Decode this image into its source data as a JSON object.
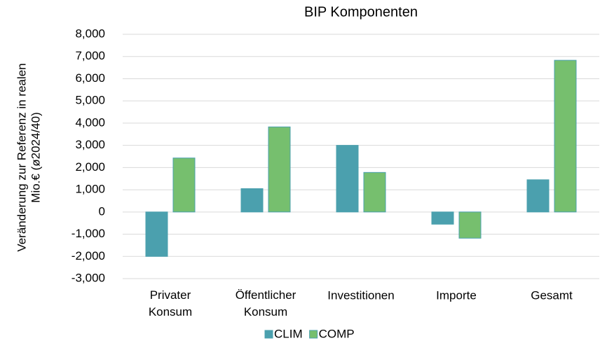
{
  "chart_data": {
    "type": "bar",
    "title": "BIP Komponenten",
    "ylabel": [
      "Veränderung zur Referenz  in realen",
      "Mio.€ (ø2024/40)"
    ],
    "categories": [
      "Privater Konsum",
      "Öffentlicher Konsum",
      "Investitionen",
      "Importe",
      "Gesamt"
    ],
    "series": [
      {
        "name": "CLIM",
        "color": "#4ba0ae",
        "values": [
          -2000,
          1050,
          3000,
          -550,
          1450
        ]
      },
      {
        "name": "COMP",
        "color": "#76bf6e",
        "values": [
          2430,
          3830,
          1780,
          -1180,
          6830
        ]
      }
    ],
    "ylim": [
      -3000,
      8000
    ],
    "yticks": [
      {
        "value": -3000,
        "label": "-3,000"
      },
      {
        "value": -2000,
        "label": "-2,000"
      },
      {
        "value": -1000,
        "label": "-1,000"
      },
      0,
      {
        "value": 1000,
        "label": "1,000"
      },
      {
        "value": 2000,
        "label": "2,000"
      },
      {
        "value": 3000,
        "label": "3,000"
      },
      {
        "value": 4000,
        "label": "4,000"
      },
      {
        "value": 5000,
        "label": "5,000"
      },
      {
        "value": 6000,
        "label": "6,000"
      },
      {
        "value": 7000,
        "label": "7,000"
      },
      {
        "value": 8000,
        "label": "8,000"
      }
    ],
    "grid": true,
    "legend": "bottom"
  }
}
